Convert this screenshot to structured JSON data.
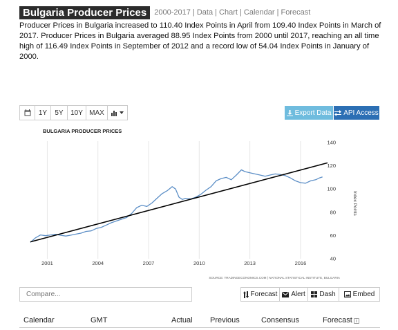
{
  "header": {
    "title": "Bulgaria Producer Prices",
    "nav": "2000-2017 | Data | Chart | Calendar | Forecast"
  },
  "description": "Producer Prices in Bulgaria increased to 110.40 Index Points in April from 109.40 Index Points in March of 2017. Producer Prices in Bulgaria averaged 88.95 Index Points from 2000 until 2017, reaching an all time high of 116.49 Index Points in September of 2012 and a record low of 54.04 Index Points in January of 2000.",
  "toolbar": {
    "calendar_icon": "calendar-icon",
    "range_buttons": [
      "1Y",
      "5Y",
      "10Y",
      "MAX"
    ],
    "chart_type_icon": "bar-chart-icon",
    "export_label": "Export Data",
    "api_label": "API Access",
    "colors": {
      "export": "#6fbcde",
      "api": "#2c6fb4"
    }
  },
  "chart_data": {
    "type": "line",
    "title": "BULGARIA PRODUCER PRICES",
    "ylabel": "Index Points",
    "ylim": [
      40,
      140
    ],
    "yticks": [
      40,
      60,
      80,
      100,
      120,
      140
    ],
    "xlim": [
      2000.0,
      2017.6
    ],
    "xticks": [
      2001,
      2004,
      2007,
      2010,
      2013,
      2016
    ],
    "grid": "vertical",
    "source": "SOURCE: TRADINGECONOMICS.COM | NATIONAL STATISTICAL INSTITUTE, BULGARIA",
    "series": [
      {
        "color": "#5b8ec6",
        "x": [
          2000.0,
          2000.3,
          2000.6,
          2000.9,
          2001.2,
          2001.5,
          2001.8,
          2002.1,
          2002.4,
          2002.7,
          2003.0,
          2003.3,
          2003.6,
          2003.9,
          2004.2,
          2004.5,
          2004.8,
          2005.1,
          2005.4,
          2005.7,
          2006.0,
          2006.3,
          2006.6,
          2006.9,
          2007.2,
          2007.5,
          2007.8,
          2008.1,
          2008.4,
          2008.6,
          2008.8,
          2009.0,
          2009.2,
          2009.5,
          2009.8,
          2010.1,
          2010.4,
          2010.7,
          2011.0,
          2011.3,
          2011.6,
          2011.9,
          2012.2,
          2012.5,
          2012.7,
          2013.0,
          2013.3,
          2013.6,
          2013.9,
          2014.2,
          2014.5,
          2014.8,
          2015.1,
          2015.4,
          2015.7,
          2016.0,
          2016.3,
          2016.6,
          2016.9,
          2017.1,
          2017.3
        ],
        "values": [
          54.04,
          58.0,
          60.5,
          59.8,
          60.5,
          61.0,
          60.2,
          59.5,
          60.3,
          61.2,
          62.0,
          63.5,
          64.0,
          66.0,
          67.0,
          69.0,
          71.0,
          72.5,
          74.0,
          75.5,
          79.0,
          84.0,
          86.0,
          85.0,
          88.0,
          92.0,
          96.0,
          98.5,
          102.0,
          100.0,
          93.0,
          91.0,
          92.0,
          91.5,
          93.0,
          95.5,
          99.0,
          102.0,
          107.0,
          109.0,
          110.0,
          108.0,
          112.0,
          116.49,
          115.0,
          114.0,
          113.0,
          112.0,
          111.0,
          112.0,
          113.0,
          112.5,
          111.5,
          109.5,
          107.0,
          105.5,
          105.0,
          107.0,
          108.0,
          109.4,
          110.4
        ]
      },
      {
        "color": "#000000",
        "x": [
          2000.0,
          2017.6
        ],
        "values": [
          54.5,
          122.5
        ]
      }
    ]
  },
  "compare": {
    "placeholder": "Compare..."
  },
  "actions": {
    "forecast_label": "Forecast",
    "alert_label": "Alert",
    "dash_label": "Dash",
    "embed_label": "Embed"
  },
  "calendar": {
    "columns": [
      "Calendar",
      "GMT",
      "Actual",
      "Previous",
      "Consensus",
      "Forecast"
    ],
    "info_glyph": "i"
  }
}
